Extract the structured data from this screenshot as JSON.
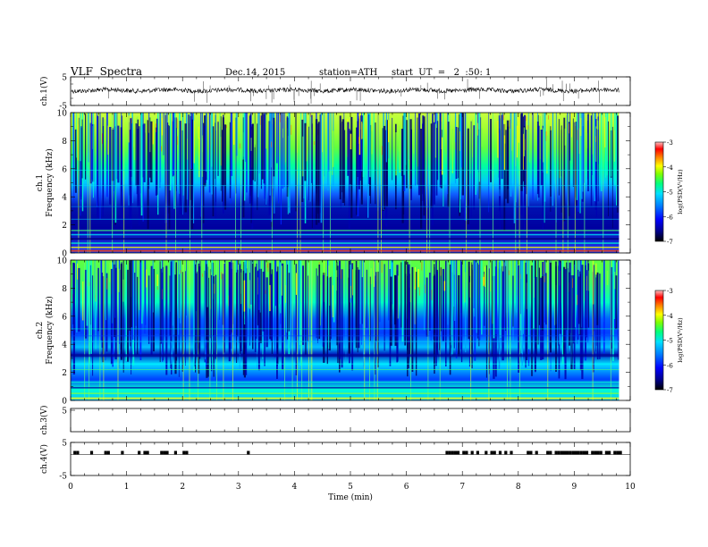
{
  "header": {
    "title": "VLF  Spectra",
    "date": "Dec.14, 2015",
    "station": "station=ATH",
    "start": "start  UT  =   2  :50: 1"
  },
  "chart_data": [
    {
      "type": "line",
      "name": "ch1-waveform",
      "ylabel": "ch.1(V)",
      "ylim": [
        -5,
        5
      ],
      "yticks": [
        "5",
        "-5"
      ],
      "xlim": [
        0,
        10
      ],
      "baseline_value": 0.3
    },
    {
      "type": "heatmap",
      "name": "ch1-spectrogram",
      "ylabel_line1": "ch.1",
      "ylabel_line2": "Frequency  (kHz)",
      "ylim": [
        0,
        10
      ],
      "yticks": [
        "0",
        "2",
        "4",
        "6",
        "8",
        "10"
      ],
      "xlim": [
        0,
        10
      ],
      "data_end_min": 9.8,
      "colorbar": {
        "label": "log(PSD(V²/Hz)",
        "range": [
          -7,
          -3
        ],
        "ticks": [
          "-3",
          "-4",
          "-5",
          "-6",
          "-7"
        ]
      }
    },
    {
      "type": "heatmap",
      "name": "ch2-spectrogram",
      "ylabel_line1": "ch.2",
      "ylabel_line2": "Frequency  (kHz)",
      "ylim": [
        0,
        10
      ],
      "yticks": [
        "0",
        "2",
        "4",
        "6",
        "8",
        "10"
      ],
      "xlim": [
        0,
        10
      ],
      "data_end_min": 9.8,
      "colorbar": {
        "label": "log(PSD(V²/Hz)",
        "range": [
          -7,
          -3
        ],
        "ticks": [
          "-3",
          "-4",
          "-5",
          "-6",
          "-7"
        ]
      }
    },
    {
      "type": "line",
      "name": "ch3-waveform",
      "ylabel": "ch.3(V)",
      "ylim": [
        -5,
        5
      ],
      "yticks": [
        "5"
      ],
      "xlim": [
        0,
        10
      ]
    },
    {
      "type": "line",
      "name": "ch4-waveform",
      "ylabel": "ch.4(V)",
      "ylim": [
        -5,
        5
      ],
      "yticks": [
        "5",
        "-5"
      ],
      "xlim": [
        0,
        10
      ],
      "xlabel": "Time  (min)",
      "xticks": [
        "0",
        "1",
        "2",
        "3",
        "4",
        "5",
        "6",
        "7",
        "8",
        "9",
        "10"
      ],
      "pulse_times_min": [
        0.05,
        0.1,
        0.35,
        0.6,
        0.65,
        0.9,
        1.2,
        1.3,
        1.35,
        1.6,
        1.65,
        1.7,
        1.85,
        2.0,
        2.05,
        3.15,
        6.7,
        6.75,
        6.8,
        6.85,
        6.9,
        7.0,
        7.05,
        7.15,
        7.25,
        7.4,
        7.5,
        7.55,
        7.65,
        7.75,
        7.85,
        8.15,
        8.2,
        8.3,
        8.5,
        8.55,
        8.65,
        8.7,
        8.75,
        8.8,
        8.85,
        8.9,
        8.95,
        9.0,
        9.05,
        9.1,
        9.15,
        9.2,
        9.3,
        9.35,
        9.4,
        9.45,
        9.55,
        9.6,
        9.7,
        9.75,
        9.8
      ]
    }
  ]
}
